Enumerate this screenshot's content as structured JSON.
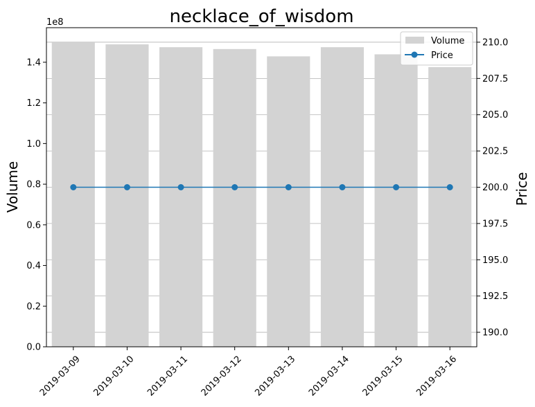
{
  "chart_data": {
    "type": "bar",
    "title": "necklace_of_wisdom",
    "categories": [
      "2019-03-09",
      "2019-03-10",
      "2019-03-11",
      "2019-03-12",
      "2019-03-13",
      "2019-03-14",
      "2019-03-15",
      "2019-03-16"
    ],
    "series": [
      {
        "name": "Volume",
        "type": "bar",
        "axis": "left",
        "color": "#d3d3d3",
        "values": [
          149800000,
          148800000,
          147400000,
          146500000,
          142900000,
          147400000,
          143900000,
          137600000
        ]
      },
      {
        "name": "Price",
        "type": "line",
        "axis": "right",
        "color": "#1f77b4",
        "marker": "circle",
        "values": [
          200.0,
          200.0,
          200.0,
          200.0,
          200.0,
          200.0,
          200.0,
          200.0
        ]
      }
    ],
    "y_left": {
      "label": "Volume",
      "offset_text": "1e8",
      "range": [
        0,
        157000000
      ],
      "ticks": [
        0,
        20000000,
        40000000,
        60000000,
        80000000,
        100000000,
        120000000,
        140000000
      ],
      "tick_labels": [
        "0.0",
        "0.2",
        "0.4",
        "0.6",
        "0.8",
        "1.0",
        "1.2",
        "1.4"
      ]
    },
    "y_right": {
      "label": "Price",
      "range": [
        189.0,
        211.0
      ],
      "ticks": [
        190.0,
        192.5,
        195.0,
        197.5,
        200.0,
        202.5,
        205.0,
        207.5,
        210.0
      ],
      "tick_labels": [
        "190.0",
        "192.5",
        "195.0",
        "197.5",
        "200.0",
        "202.5",
        "205.0",
        "207.5",
        "210.0"
      ]
    },
    "grid": "horizontal, at right-axis ticks",
    "legend": {
      "placement": "top-right",
      "entries": [
        "Volume",
        "Price"
      ]
    }
  }
}
